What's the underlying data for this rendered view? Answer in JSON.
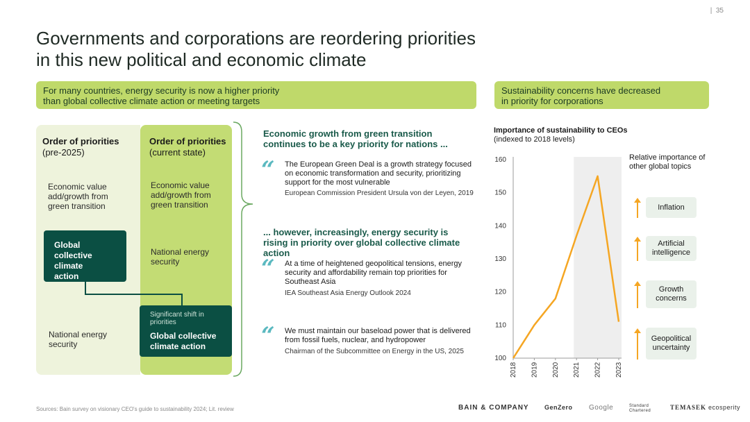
{
  "page_number": "35",
  "title_line1": "Governments and corporations are reordering priorities",
  "title_line2": "in this new political and economic climate",
  "left_banner_line1": "For many countries, energy security is now a higher priority",
  "left_banner_line2": "than global collective climate action or meeting targets",
  "right_banner_line1": "Sustainability concerns have decreased",
  "right_banner_line2": "in priority for corporations",
  "priorities": {
    "pre_head": "Order of priorities",
    "pre_sub": "(pre-2025)",
    "cur_head": "Order of priorities",
    "cur_sub": "(current state)",
    "pre_items": [
      "Economic value add/growth from green transition",
      "Global collective climate action",
      "National energy security"
    ],
    "cur_items": [
      "Economic value add/growth from green transition",
      "National energy security",
      "Global collective climate action"
    ],
    "shift_label": "Significant shift in priorities"
  },
  "quotes": {
    "head1": "Economic growth from green transition continues to be a key priority for nations ...",
    "q1_text": "The European Green Deal is a growth strategy focused on economic transformation and security, prioritizing support for the most vulnerable",
    "q1_src": "European Commission President Ursula von der Leyen, 2019",
    "head2": "... however, increasingly, energy security is rising in priority over global collective climate action",
    "q2_text": "At a time of heightened geopolitical tensions, energy security and affordability remain top priorities for Southeast Asia",
    "q2_src": "IEA Southeast Asia Energy Outlook 2024",
    "q3_text": "We must maintain our baseload power that is delivered from fossil fuels, nuclear, and hydropower",
    "q3_src": "Chairman of the Subcommittee on Energy in the US, 2025",
    "quote_icon": "quote-icon"
  },
  "chart_data": {
    "type": "line",
    "title": "Importance of sustainability to CEOs",
    "subtitle": "(indexed to 2018 levels)",
    "x": [
      "2018",
      "2019",
      "2020",
      "2021",
      "2022",
      "2023"
    ],
    "series": [
      {
        "values": [
          100,
          110,
          118,
          137,
          155,
          111
        ]
      }
    ],
    "ylim": [
      100,
      160
    ],
    "yticks": [
      100,
      110,
      120,
      130,
      140,
      150,
      160
    ],
    "highlight_range": [
      "2021",
      "2023"
    ],
    "line_color": "#f5a623",
    "highlight_color": "#eeeeee"
  },
  "topics": {
    "header": "Relative importance of other global topics",
    "items": [
      "Inflation",
      "Artificial intelligence",
      "Growth concerns",
      "Geopolitical uncertainty"
    ],
    "arrow_icon": "arrow-up-icon"
  },
  "footer": {
    "sources": "Sources: Bain survey on visionary CEO's guide to sustainability 2024; Lit. review",
    "logos": [
      "BAIN & COMPANY",
      "GenZero",
      "Google",
      "Standard Chartered",
      "TEMASEK",
      "ecosperity"
    ]
  },
  "colors": {
    "accent_green": "#bfd96a",
    "dark_green": "#0b4f43",
    "quote_blue": "#5bb9c0",
    "orange": "#f5a623"
  }
}
